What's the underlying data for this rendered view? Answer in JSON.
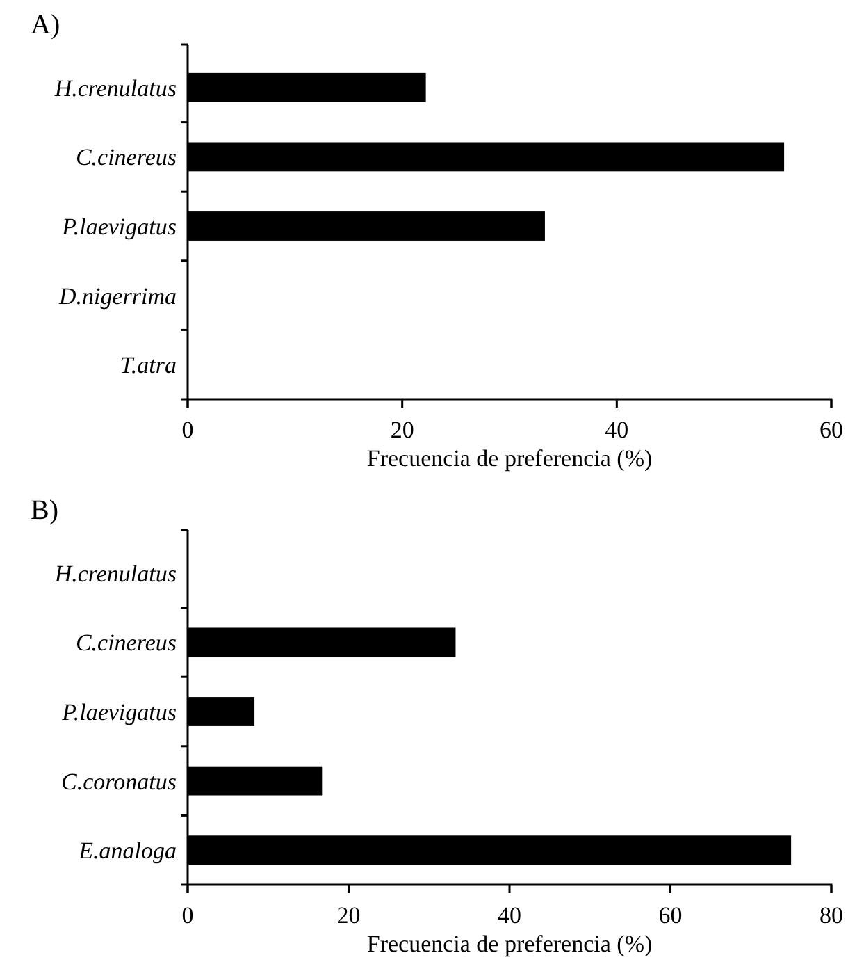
{
  "chart_data": [
    {
      "type": "bar",
      "title": "A)",
      "orientation": "horizontal",
      "categories": [
        "H.crenulatus",
        "C.cinereus",
        "P.laevigatus",
        "D.nigerrima",
        "T.atra"
      ],
      "values": [
        22.2,
        55.6,
        33.3,
        0,
        0
      ],
      "color": "#000000",
      "xlim": [
        0,
        60
      ],
      "xticks": [
        0,
        20,
        40,
        60
      ],
      "xlabel": "Frecuencia de preferencia (%)",
      "grid": false
    },
    {
      "type": "bar",
      "title": "B)",
      "orientation": "horizontal",
      "categories": [
        "H.crenulatus",
        "C.cinereus",
        "P.laevigatus",
        "C.coronatus",
        "E.analoga"
      ],
      "values": [
        0,
        33.3,
        8.3,
        16.7,
        75
      ],
      "color": "#000000",
      "xlim": [
        0,
        80
      ],
      "xticks": [
        0,
        20,
        40,
        60,
        80
      ],
      "xlabel": "Frecuencia de preferencia (%)",
      "grid": false
    }
  ]
}
